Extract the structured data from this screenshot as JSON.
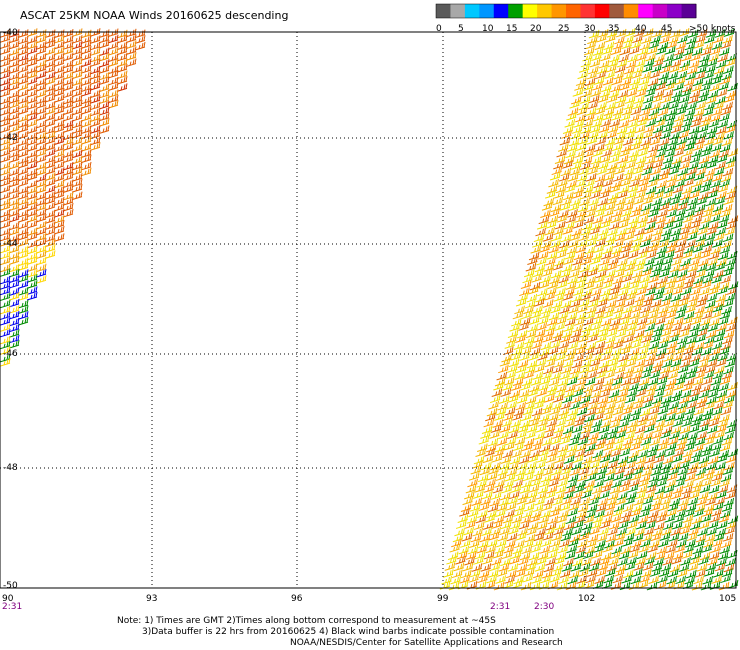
{
  "title": "ASCAT 25KM NOAA Winds 20160625 descending",
  "legend": {
    "ticks": [
      "0",
      "5",
      "10",
      "15",
      "20",
      "25",
      "30",
      "35",
      "40",
      "45",
      ">50 knots"
    ],
    "colors": [
      "#5a5a5a",
      "#a8a8a8",
      "#00c8ff",
      "#0096ff",
      "#0000ff",
      "#00a000",
      "#ffff00",
      "#ffc800",
      "#ff9600",
      "#ff6400",
      "#ff3232",
      "#ff0000",
      "#a05a3c",
      "#ff8c00",
      "#ff00ff",
      "#c800c8",
      "#8c00c8",
      "#5a0096"
    ]
  },
  "axes": {
    "lon_labels": [
      "90",
      "93",
      "96",
      "99",
      "102",
      "105"
    ],
    "lat_labels": [
      "-40",
      "-42",
      "-44",
      "-46",
      "-48",
      "-50"
    ]
  },
  "times": [
    "2:31",
    "2:31",
    "2:30"
  ],
  "notes": {
    "line1": "Note: 1) Times are GMT 2)Times along bottom correspond to measurement at ~45S",
    "line2": "3)Data buffer is 22 hrs from 20160625 4) Black wind barbs indicate possible contamination",
    "line3": "NOAA/NESDIS/Center for Satellite Applications and Research"
  }
}
